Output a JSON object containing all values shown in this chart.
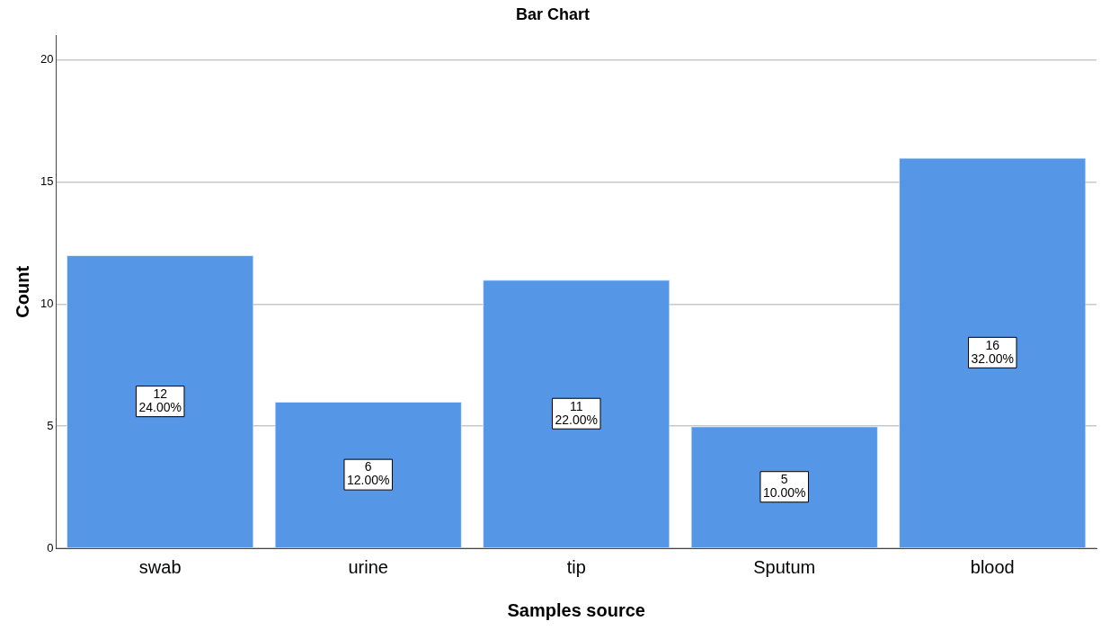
{
  "chart_data": {
    "type": "bar",
    "title": "Bar Chart",
    "xlabel": "Samples source",
    "ylabel": "Count",
    "categories": [
      "swab",
      "urine",
      "tip",
      "Sputum",
      "blood"
    ],
    "values": [
      12,
      6,
      11,
      5,
      16
    ],
    "value_labels": [
      "12\n24.00%",
      "6\n12.00%",
      "11\n22.00%",
      "5\n10.00%",
      "16\n32.00%"
    ],
    "color": "#5596e6",
    "ylim": [
      0,
      21
    ],
    "yticks": [
      0,
      5,
      10,
      15,
      20
    ],
    "grid": "y"
  }
}
